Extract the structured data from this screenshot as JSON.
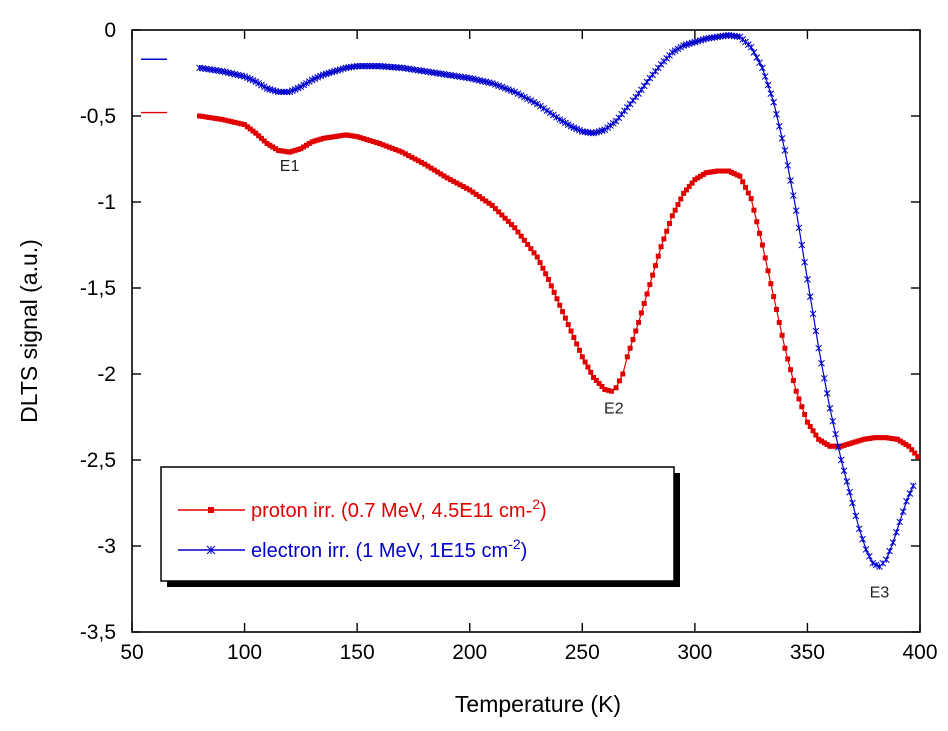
{
  "chart_data": {
    "type": "line",
    "title": "",
    "xlabel": "Temperature (K)",
    "ylabel": "DLTS signal (a.u.)",
    "xlim": [
      50,
      400
    ],
    "ylim": [
      -3.5,
      0
    ],
    "x_ticks": [
      50,
      100,
      150,
      200,
      250,
      300,
      350,
      400
    ],
    "x_tick_labels": [
      "50",
      "100",
      "150",
      "200",
      "250",
      "300",
      "350",
      "400"
    ],
    "y_ticks": [
      0,
      -0.5,
      -1,
      -1.5,
      -2,
      -2.5,
      -3,
      -3.5
    ],
    "y_tick_labels": [
      "0",
      "-0,5",
      "-1",
      "-1,5",
      "-2",
      "-2,5",
      "-3",
      "-3,5"
    ],
    "grid": false,
    "legend_position": "lower-left",
    "series": [
      {
        "name": "proton irr. (0.7 MeV, 4.5E11 cm-2)",
        "legend_main": "proton irr. (0.7 MeV, 4.5E11 cm-",
        "legend_sup": "2",
        "legend_end": ")",
        "color": "#e00000",
        "marker": "square",
        "x": [
          80,
          90,
          100,
          105,
          110,
          115,
          120,
          125,
          130,
          135,
          140,
          145,
          150,
          160,
          170,
          180,
          190,
          200,
          210,
          220,
          230,
          235,
          240,
          245,
          250,
          255,
          260,
          263,
          265,
          268,
          270,
          275,
          280,
          285,
          290,
          295,
          300,
          305,
          310,
          315,
          320,
          325,
          330,
          335,
          340,
          345,
          350,
          355,
          360,
          365,
          370,
          375,
          380,
          385,
          390,
          395,
          399
        ],
        "y": [
          -0.5,
          -0.52,
          -0.55,
          -0.6,
          -0.66,
          -0.7,
          -0.71,
          -0.69,
          -0.65,
          -0.63,
          -0.62,
          -0.61,
          -0.62,
          -0.66,
          -0.71,
          -0.78,
          -0.86,
          -0.93,
          -1.02,
          -1.15,
          -1.32,
          -1.45,
          -1.6,
          -1.75,
          -1.9,
          -2.02,
          -2.09,
          -2.1,
          -2.08,
          -2.0,
          -1.9,
          -1.7,
          -1.48,
          -1.26,
          -1.08,
          -0.95,
          -0.87,
          -0.83,
          -0.82,
          -0.82,
          -0.85,
          -0.98,
          -1.25,
          -1.55,
          -1.85,
          -2.1,
          -2.28,
          -2.38,
          -2.42,
          -2.42,
          -2.4,
          -2.38,
          -2.37,
          -2.37,
          -2.38,
          -2.42,
          -2.48
        ]
      },
      {
        "name": "electron irr. (1 MeV, 1E15 cm-2)",
        "legend_main": "electron irr. (1 MeV, 1E15 cm",
        "legend_sup": "-2",
        "legend_end": ")",
        "color": "#0000cc",
        "marker": "cross",
        "x": [
          80,
          90,
          100,
          105,
          110,
          115,
          120,
          125,
          130,
          135,
          140,
          145,
          150,
          160,
          170,
          180,
          190,
          200,
          210,
          220,
          230,
          240,
          245,
          250,
          255,
          260,
          265,
          270,
          275,
          280,
          285,
          290,
          295,
          300,
          305,
          310,
          315,
          320,
          325,
          330,
          335,
          340,
          345,
          350,
          355,
          360,
          365,
          370,
          373,
          376,
          379,
          382,
          385,
          388,
          391,
          394,
          397
        ],
        "y": [
          -0.22,
          -0.24,
          -0.27,
          -0.3,
          -0.34,
          -0.36,
          -0.36,
          -0.33,
          -0.29,
          -0.26,
          -0.24,
          -0.22,
          -0.21,
          -0.21,
          -0.22,
          -0.24,
          -0.26,
          -0.28,
          -0.31,
          -0.36,
          -0.43,
          -0.52,
          -0.56,
          -0.59,
          -0.6,
          -0.58,
          -0.53,
          -0.45,
          -0.37,
          -0.28,
          -0.2,
          -0.13,
          -0.09,
          -0.07,
          -0.05,
          -0.04,
          -0.03,
          -0.04,
          -0.1,
          -0.22,
          -0.42,
          -0.7,
          -1.05,
          -1.45,
          -1.85,
          -2.2,
          -2.5,
          -2.75,
          -2.9,
          -3.02,
          -3.1,
          -3.12,
          -3.08,
          -2.98,
          -2.86,
          -2.74,
          -2.65
        ]
      }
    ],
    "annotations": [
      {
        "text": "E1",
        "x": 120,
        "y": -0.82
      },
      {
        "text": "E2",
        "x": 264,
        "y": -2.23
      },
      {
        "text": "E3",
        "x": 382,
        "y": -3.3
      }
    ],
    "corner_marks": [
      {
        "series": 1,
        "y": -0.17
      },
      {
        "series": 0,
        "y": -0.48
      }
    ]
  }
}
